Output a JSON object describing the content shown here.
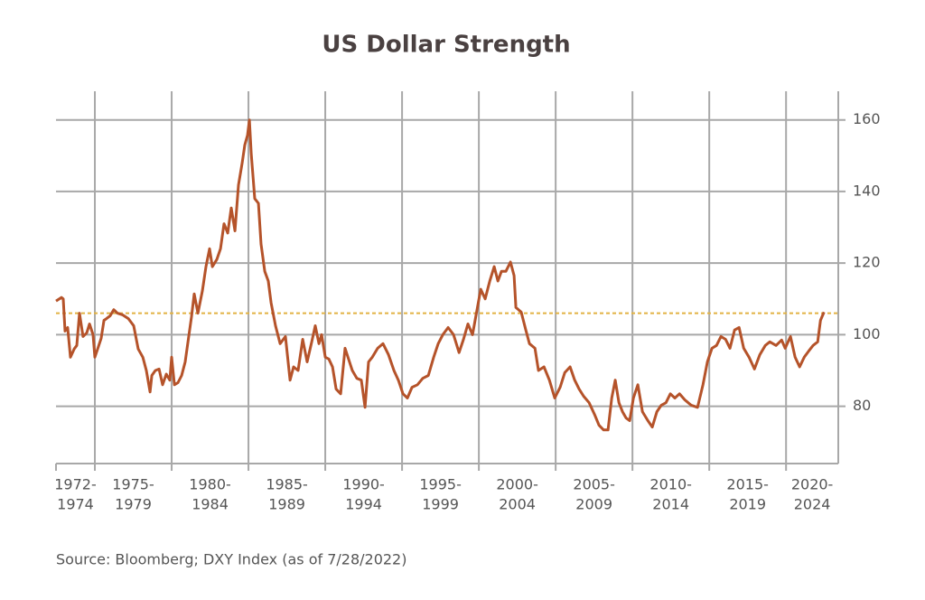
{
  "chart_data": {
    "type": "line",
    "title": "US Dollar Strength",
    "source": "Source: Bloomberg; DXY Index (as of 7/28/2022)",
    "periods": [
      [
        "1972-",
        "1974"
      ],
      [
        "1975-",
        "1979"
      ],
      [
        "1980-",
        "1984"
      ],
      [
        "1985-",
        "1989"
      ],
      [
        "1990-",
        "1994"
      ],
      [
        "1995-",
        "1999"
      ],
      [
        "2000-",
        "2004"
      ],
      [
        "2005-",
        "2009"
      ],
      [
        "2010-",
        "2014"
      ],
      [
        "2015-",
        "2019"
      ],
      [
        "2020-",
        "2024"
      ]
    ],
    "xlim": [
      1972.47,
      2023.4
    ],
    "xticks": [
      1975,
      1980,
      1985,
      1990,
      1995,
      2000,
      2005,
      2010,
      2015,
      2020
    ],
    "ylim": [
      64,
      168
    ],
    "yticks": [
      80,
      100,
      120,
      140,
      160
    ],
    "grid": true,
    "reference_line": {
      "value": 106,
      "color": "#e2b243"
    },
    "series": [
      {
        "name": "DXY Index",
        "color": "#b5532a",
        "x": [
          1972.47,
          1972.82,
          1972.94,
          1973.06,
          1973.23,
          1973.41,
          1973.65,
          1973.82,
          1974.0,
          1974.23,
          1974.47,
          1974.65,
          1974.88,
          1975.0,
          1975.18,
          1975.41,
          1975.59,
          1975.76,
          1976.0,
          1976.23,
          1976.47,
          1976.82,
          1977.18,
          1977.53,
          1977.82,
          1978.12,
          1978.35,
          1978.59,
          1978.71,
          1978.94,
          1979.18,
          1979.41,
          1979.65,
          1979.88,
          1980.0,
          1980.18,
          1980.41,
          1980.65,
          1980.88,
          1981.06,
          1981.29,
          1981.47,
          1981.71,
          1982.0,
          1982.23,
          1982.47,
          1982.65,
          1982.94,
          1983.18,
          1983.41,
          1983.65,
          1983.88,
          1984.12,
          1984.35,
          1984.59,
          1984.76,
          1984.94,
          1985.06,
          1985.18,
          1985.41,
          1985.65,
          1985.82,
          1986.06,
          1986.29,
          1986.47,
          1986.76,
          1987.06,
          1987.41,
          1987.71,
          1987.94,
          1988.23,
          1988.53,
          1988.82,
          1989.12,
          1989.35,
          1989.59,
          1989.76,
          1990.0,
          1990.23,
          1990.47,
          1990.71,
          1991.0,
          1991.29,
          1991.53,
          1991.76,
          1992.06,
          1992.35,
          1992.59,
          1992.82,
          1993.06,
          1993.41,
          1993.76,
          1994.12,
          1994.47,
          1994.76,
          1995.06,
          1995.35,
          1995.65,
          1996.0,
          1996.35,
          1996.71,
          1997.06,
          1997.35,
          1997.65,
          1998.0,
          1998.35,
          1998.71,
          1999.0,
          1999.29,
          1999.59,
          1999.82,
          2000.12,
          2000.41,
          2000.71,
          2001.0,
          2001.24,
          2001.47,
          2001.76,
          2002.06,
          2002.29,
          2002.41,
          2002.76,
          2003.06,
          2003.29,
          2003.65,
          2003.88,
          2004.24,
          2004.59,
          2004.94,
          2005.29,
          2005.59,
          2005.94,
          2006.24,
          2006.53,
          2006.82,
          2007.18,
          2007.53,
          2007.82,
          2008.12,
          2008.41,
          2008.65,
          2008.88,
          2009.12,
          2009.35,
          2009.59,
          2009.82,
          2010.06,
          2010.35,
          2010.65,
          2011.0,
          2011.29,
          2011.59,
          2011.88,
          2012.18,
          2012.47,
          2012.76,
          2013.06,
          2013.41,
          2013.82,
          2014.24,
          2014.59,
          2014.88,
          2015.18,
          2015.47,
          2015.76,
          2016.06,
          2016.35,
          2016.65,
          2016.94,
          2017.24,
          2017.59,
          2017.94,
          2018.29,
          2018.65,
          2018.94,
          2019.35,
          2019.71,
          2019.94,
          2020.29,
          2020.59,
          2020.88,
          2021.18,
          2021.47,
          2021.76,
          2022.06,
          2022.24,
          2022.47
        ],
        "values": [
          109.4,
          110.4,
          110,
          101,
          102,
          93.7,
          96,
          97,
          106,
          99.5,
          100.5,
          103,
          100,
          93.7,
          96,
          99,
          104,
          104.5,
          105.3,
          107,
          106,
          105.5,
          104.5,
          102.5,
          96,
          93.7,
          90,
          84,
          88.6,
          90,
          90.4,
          86,
          89,
          87.3,
          93.7,
          86,
          86.6,
          88.6,
          92.4,
          98,
          105,
          111.4,
          106,
          112.2,
          119,
          124,
          119,
          121,
          124,
          131,
          128.4,
          135.4,
          129,
          141.8,
          148,
          153,
          155.7,
          160,
          150.6,
          138,
          136.7,
          125.3,
          117.7,
          115,
          108.9,
          102.5,
          97.5,
          99.5,
          87.3,
          91,
          90,
          98.7,
          92.4,
          98,
          102.5,
          97.5,
          100,
          93.7,
          93.2,
          91,
          84.8,
          83.5,
          96.2,
          93,
          90,
          87.8,
          87.3,
          79.7,
          92.4,
          93.7,
          96.2,
          97.5,
          94.4,
          90,
          87.3,
          83.5,
          82.3,
          85.3,
          86,
          87.8,
          88.6,
          93.7,
          97.5,
          100,
          102,
          100,
          95,
          98.7,
          103,
          100,
          105.6,
          112.7,
          110,
          115,
          119,
          115,
          117.7,
          117.7,
          120.3,
          116.5,
          107.6,
          106.3,
          101.3,
          97.5,
          96.2,
          90,
          91,
          87.3,
          82.3,
          85.3,
          89.4,
          91,
          87.3,
          84.8,
          82.8,
          81,
          77.7,
          74.7,
          73.4,
          73.4,
          82.3,
          87.3,
          81,
          78.5,
          76.7,
          76,
          82.3,
          86,
          78.5,
          76,
          74.2,
          78.5,
          80.3,
          81,
          83.5,
          82.3,
          83.5,
          81.8,
          80.3,
          79.7,
          86,
          92.4,
          96.2,
          97,
          99.5,
          98.7,
          96.2,
          101.3,
          102,
          96.2,
          93.7,
          90.4,
          94.4,
          97,
          98,
          97,
          98.5,
          96.2,
          99.5,
          93.7,
          91,
          93.7,
          95.4,
          97,
          98,
          104,
          106.3
        ]
      }
    ]
  }
}
